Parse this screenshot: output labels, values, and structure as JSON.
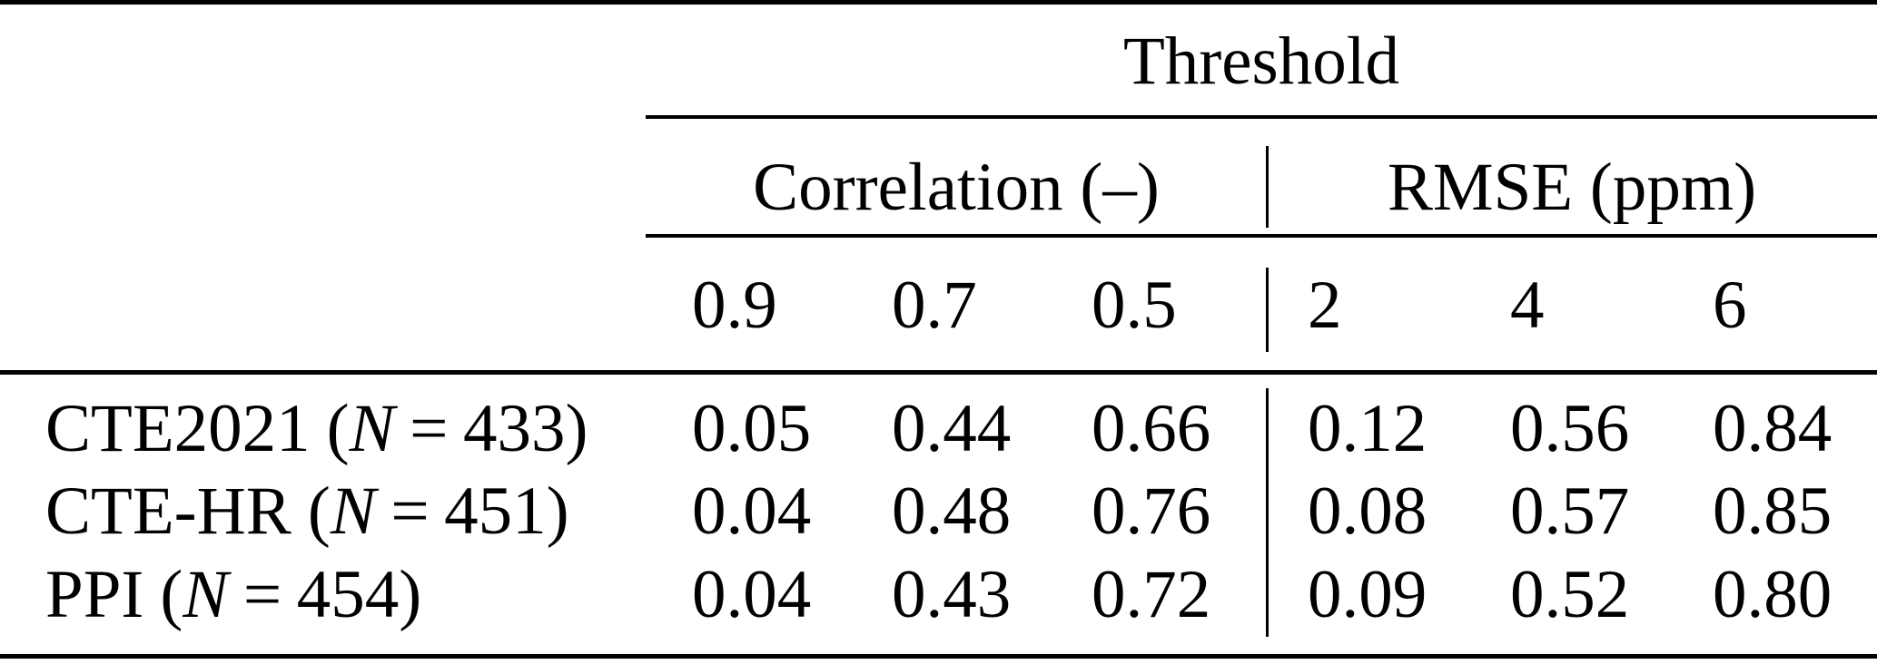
{
  "chart_data": {
    "type": "table",
    "group_header": "Threshold",
    "subgroups": [
      {
        "label": "Correlation (–)",
        "columns": [
          "0.9",
          "0.7",
          "0.5"
        ]
      },
      {
        "label": "RMSE (ppm)",
        "columns": [
          "2",
          "4",
          "6"
        ]
      }
    ],
    "rows": [
      {
        "model": "CTE2021",
        "n": "433",
        "correlation": [
          "0.05",
          "0.44",
          "0.66"
        ],
        "rmse": [
          "0.12",
          "0.56",
          "0.84"
        ]
      },
      {
        "model": "CTE-HR",
        "n": "451",
        "correlation": [
          "0.04",
          "0.48",
          "0.76"
        ],
        "rmse": [
          "0.08",
          "0.57",
          "0.85"
        ]
      },
      {
        "model": "PPI",
        "n": "454",
        "correlation": [
          "0.04",
          "0.43",
          "0.72"
        ],
        "rmse": [
          "0.09",
          "0.52",
          "0.80"
        ]
      }
    ],
    "row_label_format": {
      "open": "(",
      "n_symbol": "N",
      "equals": "=",
      "close": ")"
    },
    "layout": {
      "legend_position": "none",
      "grid": "off"
    },
    "colors": {
      "text": "#000000",
      "background": "#ffffff",
      "rule": "#000000"
    }
  }
}
